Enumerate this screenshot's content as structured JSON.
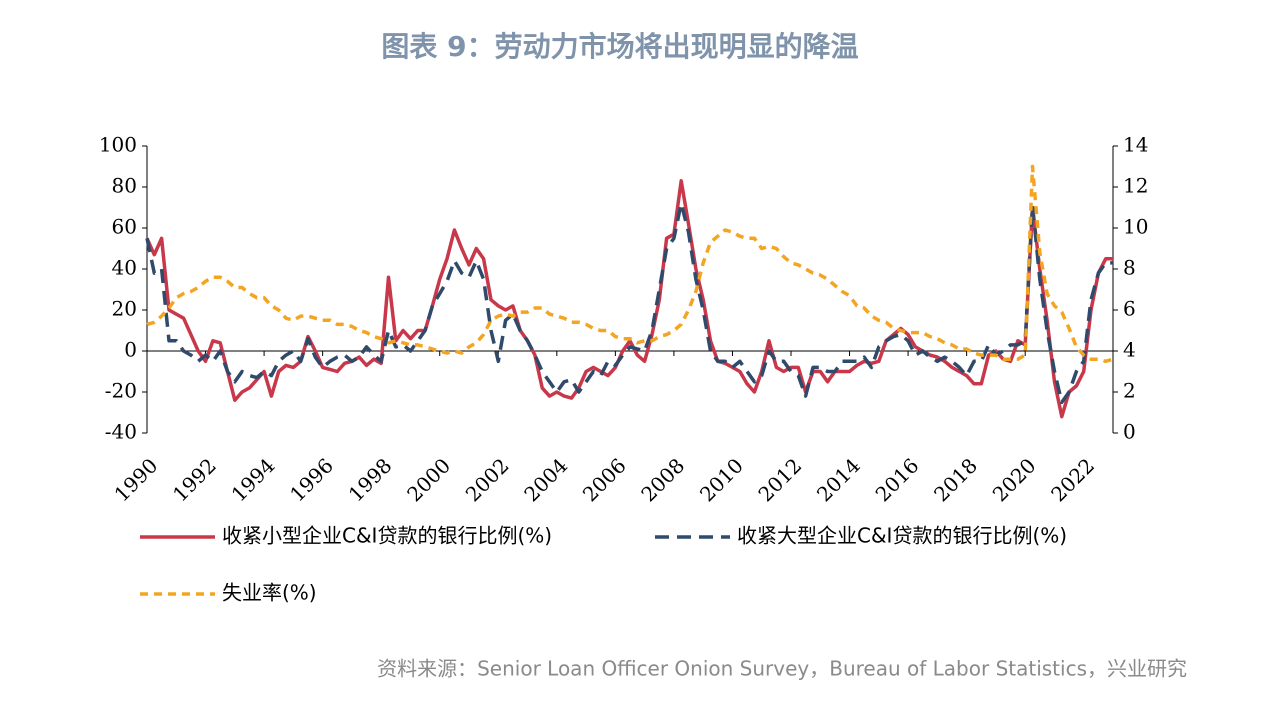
{
  "chart_data": {
    "type": "line",
    "title": "图表 9：劳动力市场将出现明显的降温",
    "source": "资料来源：Senior Loan Officer Onion Survey，Bureau of Labor Statistics，兴业研究",
    "x": [
      1990,
      1990.25,
      1990.5,
      1990.75,
      1991,
      1991.25,
      1991.5,
      1991.75,
      1992,
      1992.25,
      1992.5,
      1992.75,
      1993,
      1993.25,
      1993.5,
      1993.75,
      1994,
      1994.25,
      1994.5,
      1994.75,
      1995,
      1995.25,
      1995.5,
      1995.75,
      1996,
      1996.25,
      1996.5,
      1996.75,
      1997,
      1997.25,
      1997.5,
      1997.75,
      1998,
      1998.25,
      1998.5,
      1998.75,
      1999,
      1999.25,
      1999.5,
      1999.75,
      2000,
      2000.25,
      2000.5,
      2000.75,
      2001,
      2001.25,
      2001.5,
      2001.75,
      2002,
      2002.25,
      2002.5,
      2002.75,
      2003,
      2003.25,
      2003.5,
      2003.75,
      2004,
      2004.25,
      2004.5,
      2004.75,
      2005,
      2005.25,
      2005.5,
      2005.75,
      2006,
      2006.25,
      2006.5,
      2006.75,
      2007,
      2007.25,
      2007.5,
      2007.75,
      2008,
      2008.25,
      2008.5,
      2008.75,
      2009,
      2009.25,
      2009.5,
      2009.75,
      2010,
      2010.25,
      2010.5,
      2010.75,
      2011,
      2011.25,
      2011.5,
      2011.75,
      2012,
      2012.25,
      2012.5,
      2012.75,
      2013,
      2013.25,
      2013.5,
      2013.75,
      2014,
      2014.25,
      2014.5,
      2014.75,
      2015,
      2015.25,
      2015.5,
      2015.75,
      2016,
      2016.25,
      2016.5,
      2016.75,
      2017,
      2017.25,
      2017.5,
      2017.75,
      2018,
      2018.25,
      2018.5,
      2018.75,
      2019,
      2019.25,
      2019.5,
      2019.75,
      2020,
      2020.25,
      2020.5,
      2020.75,
      2021,
      2021.25,
      2021.5,
      2021.75,
      2022,
      2022.25,
      2022.5,
      2022.75,
      2023
    ],
    "series": [
      {
        "name": "收紧小型企业C&I贷款的银行比例(%)",
        "color": "#c8384a",
        "dash": "solid",
        "values": [
          55,
          47,
          55,
          20,
          18,
          16,
          8,
          0,
          -5,
          5,
          4,
          -10,
          -24,
          -20,
          -18,
          -14,
          -10,
          -22,
          -10,
          -7,
          -8,
          -5,
          7,
          0,
          -8,
          -9,
          -10,
          -6,
          -5,
          -3,
          -7,
          -4,
          -6,
          36,
          5,
          10,
          6,
          10,
          10,
          22,
          35,
          45,
          59,
          50,
          42,
          50,
          45,
          25,
          22,
          20,
          22,
          10,
          5,
          -2,
          -18,
          -22,
          -20,
          -22,
          -23,
          -18,
          -10,
          -8,
          -10,
          -12,
          -8,
          0,
          5,
          -2,
          -5,
          8,
          25,
          55,
          57,
          83,
          62,
          40,
          25,
          5,
          -5,
          -6,
          -8,
          -10,
          -16,
          -20,
          -10,
          5,
          -8,
          -10,
          -8,
          -8,
          -20,
          -10,
          -10,
          -15,
          -10,
          -10,
          -10,
          -7,
          -5,
          -6,
          -5,
          5,
          8,
          11,
          8,
          2,
          0,
          -2,
          -3,
          -5,
          -8,
          -10,
          -12,
          -16,
          -16,
          -2,
          0,
          -4,
          -5,
          5,
          3,
          70,
          40,
          15,
          -15,
          -32,
          -20,
          -17,
          -10,
          20,
          38,
          45,
          45
        ]
      },
      {
        "name": "收紧大型企业C&I贷款的银行比例(%)",
        "color": "#2f4a6b",
        "dash": "dashed",
        "values": [
          55,
          38,
          40,
          5,
          5,
          0,
          -2,
          -5,
          -2,
          -5,
          0,
          -10,
          -15,
          -10,
          -12,
          -13,
          -10,
          -12,
          -5,
          -2,
          0,
          -5,
          6,
          -3,
          -8,
          -5,
          -3,
          -2,
          -5,
          -3,
          2,
          -2,
          -5,
          10,
          2,
          3,
          0,
          5,
          10,
          22,
          28,
          34,
          44,
          38,
          36,
          44,
          35,
          10,
          -5,
          15,
          18,
          10,
          5,
          -2,
          -10,
          -15,
          -20,
          -15,
          -14,
          -20,
          -15,
          -10,
          -12,
          -5,
          -7,
          -2,
          2,
          1,
          0,
          10,
          30,
          50,
          55,
          72,
          58,
          35,
          20,
          0,
          -5,
          -5,
          -8,
          -5,
          -10,
          -15,
          -12,
          0,
          -5,
          -5,
          -10,
          -12,
          -22,
          -8,
          -8,
          -10,
          -10,
          -5,
          -5,
          -5,
          -3,
          -8,
          2,
          5,
          7,
          8,
          5,
          -2,
          0,
          -3,
          -5,
          -3,
          -5,
          -8,
          -12,
          -5,
          -5,
          3,
          -2,
          0,
          3,
          3,
          5,
          71,
          35,
          10,
          -10,
          -25,
          -20,
          -10,
          -5,
          25,
          38,
          43,
          43
        ]
      },
      {
        "name": "失业率(%)",
        "color": "#f3a521",
        "dash": "dotted",
        "axis": "y2",
        "values": [
          5.3,
          5.4,
          5.7,
          6.1,
          6.6,
          6.8,
          6.9,
          7.1,
          7.4,
          7.6,
          7.6,
          7.4,
          7.1,
          7.1,
          6.8,
          6.6,
          6.6,
          6.2,
          6.0,
          5.6,
          5.5,
          5.7,
          5.7,
          5.6,
          5.5,
          5.5,
          5.3,
          5.3,
          5.2,
          5.0,
          4.9,
          4.7,
          4.6,
          4.4,
          4.5,
          4.4,
          4.3,
          4.3,
          4.2,
          4.1,
          4.0,
          3.9,
          4.0,
          3.9,
          4.2,
          4.4,
          4.8,
          5.5,
          5.7,
          5.8,
          5.7,
          5.9,
          5.9,
          6.1,
          6.1,
          5.8,
          5.7,
          5.6,
          5.4,
          5.4,
          5.3,
          5.1,
          5.0,
          5.0,
          4.7,
          4.6,
          4.6,
          4.4,
          4.5,
          4.5,
          4.7,
          4.8,
          5.0,
          5.3,
          6.0,
          6.9,
          8.3,
          9.3,
          9.6,
          9.9,
          9.8,
          9.6,
          9.5,
          9.5,
          9.0,
          9.1,
          9.0,
          8.6,
          8.3,
          8.2,
          8.0,
          7.8,
          7.7,
          7.5,
          7.2,
          6.9,
          6.7,
          6.2,
          6.1,
          5.7,
          5.5,
          5.4,
          5.1,
          5.0,
          4.9,
          4.9,
          4.9,
          4.7,
          4.6,
          4.4,
          4.3,
          4.1,
          4.1,
          3.9,
          3.8,
          3.8,
          3.8,
          3.6,
          3.6,
          3.6,
          3.8,
          13.0,
          8.8,
          6.8,
          6.2,
          5.9,
          5.1,
          4.2,
          3.8,
          3.6,
          3.6,
          3.5,
          3.6
        ]
      }
    ],
    "xlim": [
      1990,
      2023
    ],
    "xticks": [
      1990,
      1992,
      1994,
      1996,
      1998,
      2000,
      2002,
      2004,
      2006,
      2008,
      2010,
      2012,
      2014,
      2016,
      2018,
      2020,
      2022
    ],
    "ylim": [
      -40,
      100
    ],
    "yticks": [
      -40,
      -20,
      0,
      20,
      40,
      60,
      80,
      100
    ],
    "y2lim": [
      0,
      14
    ],
    "y2ticks": [
      0,
      2,
      4,
      6,
      8,
      10,
      12,
      14
    ],
    "grid": false,
    "legend": "bottom"
  }
}
